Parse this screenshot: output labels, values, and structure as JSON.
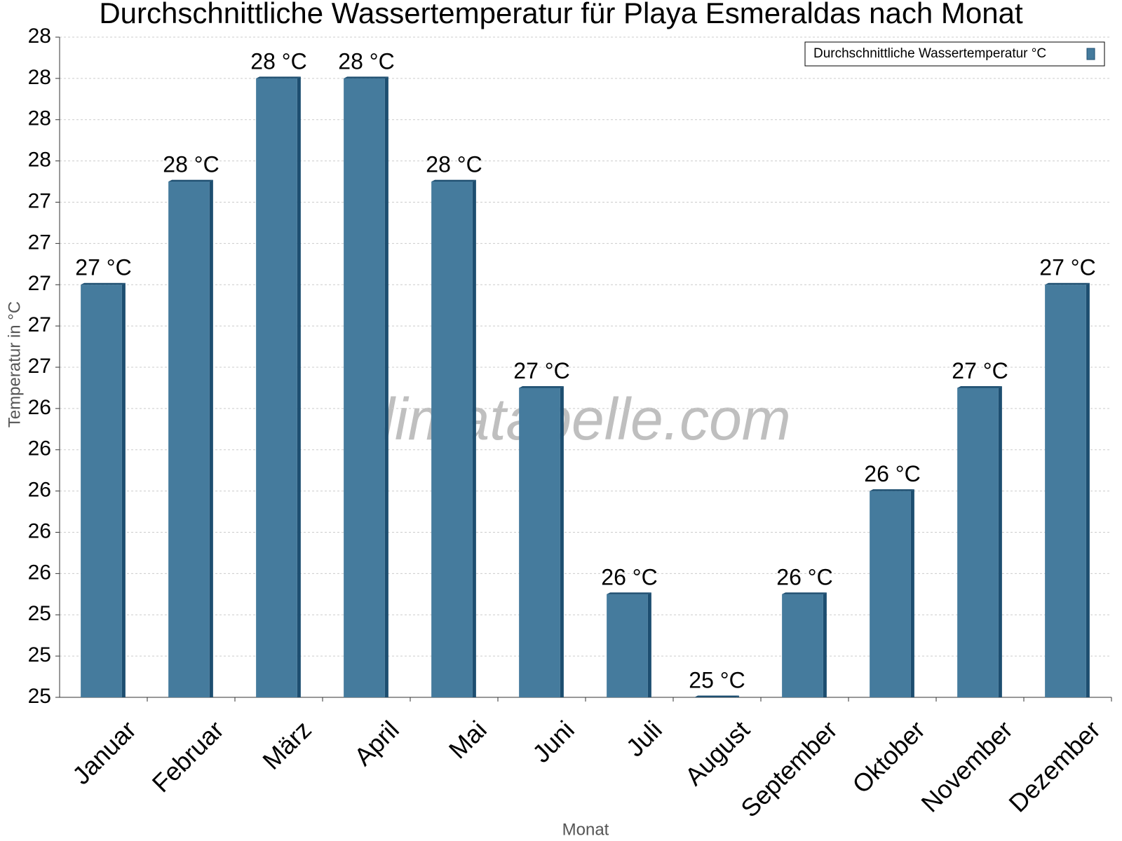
{
  "chart_data": {
    "type": "bar",
    "title": "Durchschnittliche Wassertemperatur für Playa Esmeraldas nach Monat",
    "watermark": "klimatabelle.com",
    "x_label": "Monat",
    "y_label": "Temperatur in °C",
    "categories": [
      "Januar",
      "Februar",
      "März",
      "April",
      "Mai",
      "Juni",
      "Juli",
      "August",
      "September",
      "Oktober",
      "November",
      "Dezember"
    ],
    "series": [
      {
        "name": "Durchschnittliche Wassertemperatur °C",
        "color": "#457b9d",
        "values": [
          27.0,
          27.5,
          28.0,
          28.0,
          27.5,
          26.5,
          25.5,
          25.0,
          25.5,
          26.0,
          26.5,
          27.0
        ],
        "value_labels": [
          "27 °C",
          "28 °C",
          "28 °C",
          "28 °C",
          "28 °C",
          "27 °C",
          "26 °C",
          "25 °C",
          "26 °C",
          "26 °C",
          "27 °C",
          "27 °C"
        ]
      }
    ],
    "ylim": [
      25.0,
      28.2
    ],
    "yticks": [
      {
        "value": 25.0,
        "label": "25"
      },
      {
        "value": 25.2,
        "label": "25"
      },
      {
        "value": 25.4,
        "label": "25"
      },
      {
        "value": 25.6,
        "label": "26"
      },
      {
        "value": 25.8,
        "label": "26"
      },
      {
        "value": 26.0,
        "label": "26"
      },
      {
        "value": 26.2,
        "label": "26"
      },
      {
        "value": 26.4,
        "label": "26"
      },
      {
        "value": 26.6,
        "label": "27"
      },
      {
        "value": 26.8,
        "label": "27"
      },
      {
        "value": 27.0,
        "label": "27"
      },
      {
        "value": 27.2,
        "label": "27"
      },
      {
        "value": 27.4,
        "label": "27"
      },
      {
        "value": 27.6,
        "label": "28"
      },
      {
        "value": 27.8,
        "label": "28"
      },
      {
        "value": 28.0,
        "label": "28"
      },
      {
        "value": 28.2,
        "label": "28"
      }
    ],
    "grid": true,
    "legend": "top-right"
  }
}
